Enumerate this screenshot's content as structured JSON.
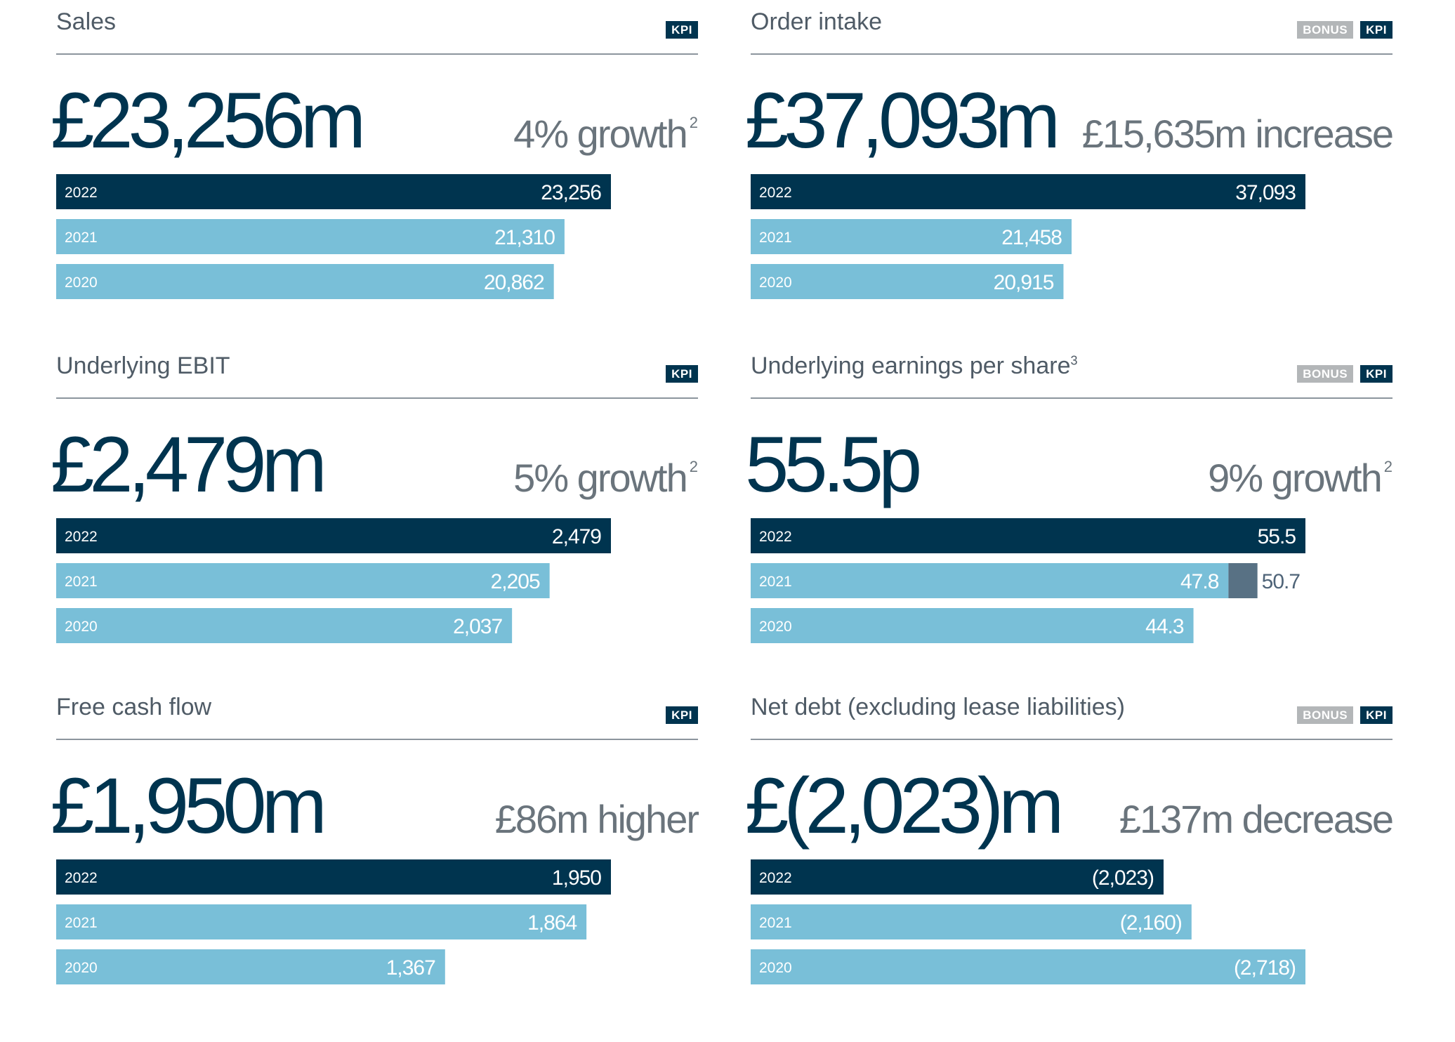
{
  "colors": {
    "bar_current": "#00344f",
    "bar_prior": "#79bfd8",
    "bar_restated": "#587184",
    "badge_kpi": "#00344f",
    "badge_bonus": "#b3b6b8"
  },
  "panels": [
    {
      "title": "Sales",
      "superscript": "",
      "badges": [
        "KPI"
      ],
      "headline": "£23,256m",
      "change": "4% growth",
      "change_superscript": "2"
    },
    {
      "title": "Order intake",
      "superscript": "",
      "badges": [
        "BONUS",
        "KPI"
      ],
      "headline": "£37,093m",
      "change": "£15,635m increase",
      "change_superscript": ""
    },
    {
      "title": "Underlying EBIT",
      "superscript": "",
      "badges": [
        "KPI"
      ],
      "headline": "£2,479m",
      "change": "5% growth",
      "change_superscript": "2"
    },
    {
      "title": "Underlying earnings per share",
      "superscript": "3",
      "badges": [
        "BONUS",
        "KPI"
      ],
      "headline": "55.5p",
      "change": "9% growth",
      "change_superscript": "2"
    },
    {
      "title": "Free cash flow",
      "superscript": "",
      "badges": [
        "KPI"
      ],
      "headline": "£1,950m",
      "change": "£86m higher",
      "change_superscript": ""
    },
    {
      "title": "Net debt (excluding lease liabilities)",
      "superscript": "",
      "badges": [
        "BONUS",
        "KPI"
      ],
      "headline": "£(2,023)m",
      "change": "£137m decrease",
      "change_superscript": ""
    }
  ],
  "chart_data": [
    {
      "type": "bar",
      "orientation": "horizontal",
      "title": "Sales",
      "categories": [
        "2022",
        "2021",
        "2020"
      ],
      "values": [
        23256,
        21310,
        20862
      ],
      "labels": [
        "23,256",
        "21,310",
        "20,862"
      ]
    },
    {
      "type": "bar",
      "orientation": "horizontal",
      "title": "Order intake",
      "categories": [
        "2022",
        "2021",
        "2020"
      ],
      "values": [
        37093,
        21458,
        20915
      ],
      "labels": [
        "37,093",
        "21,458",
        "20,915"
      ]
    },
    {
      "type": "bar",
      "orientation": "horizontal",
      "title": "Underlying EBIT",
      "categories": [
        "2022",
        "2021",
        "2020"
      ],
      "values": [
        2479,
        2205,
        2037
      ],
      "labels": [
        "2,479",
        "2,205",
        "2,037"
      ]
    },
    {
      "type": "bar",
      "orientation": "horizontal",
      "title": "Underlying earnings per share",
      "categories": [
        "2022",
        "2021",
        "2020"
      ],
      "values": [
        55.5,
        47.8,
        44.3
      ],
      "labels": [
        "55.5",
        "47.8",
        "44.3"
      ],
      "extensions": [
        null,
        50.7,
        null
      ],
      "extension_labels": [
        "",
        "50.7",
        ""
      ]
    },
    {
      "type": "bar",
      "orientation": "horizontal",
      "title": "Free cash flow",
      "categories": [
        "2022",
        "2021",
        "2020"
      ],
      "values": [
        1950,
        1864,
        1367
      ],
      "labels": [
        "1,950",
        "1,864",
        "1,367"
      ]
    },
    {
      "type": "bar",
      "orientation": "horizontal",
      "title": "Net debt (excluding lease liabilities)",
      "categories": [
        "2022",
        "2021",
        "2020"
      ],
      "values": [
        -2023,
        -2160,
        -2718
      ],
      "labels": [
        "(2,023)",
        "(2,160)",
        "(2,718)"
      ]
    }
  ]
}
